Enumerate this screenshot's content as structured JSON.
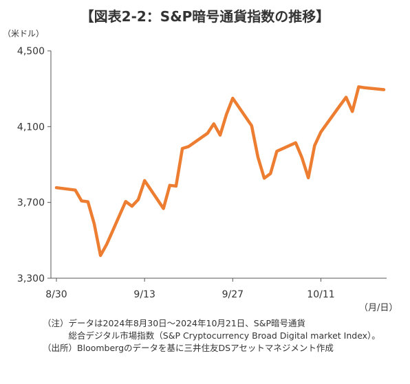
{
  "chart_data": {
    "type": "line",
    "title": "【図表2-2：S&P暗号通貨指数の推移】",
    "ylabel": "（米ドル）",
    "xlabel": "（月/日）",
    "ylim": [
      3300,
      4500
    ],
    "yticks": [
      "4,500",
      "4,100",
      "3,700",
      "3,300"
    ],
    "ytick_values": [
      4500,
      4100,
      3700,
      3300
    ],
    "xticks": [
      "8/30",
      "9/13",
      "9/27",
      "10/11"
    ],
    "xtick_dates": [
      "2024-08-30",
      "2024-09-13",
      "2024-09-27",
      "2024-10-11"
    ],
    "grid": false,
    "line_color": "#ED7D31",
    "series": [
      {
        "x": [
          "2024-08-30",
          "2024-09-02",
          "2024-09-03",
          "2024-09-04",
          "2024-09-05",
          "2024-09-06",
          "2024-09-07",
          "2024-09-08",
          "2024-09-09",
          "2024-09-10",
          "2024-09-11",
          "2024-09-12",
          "2024-09-13",
          "2024-09-16",
          "2024-09-17",
          "2024-09-18",
          "2024-09-19",
          "2024-09-20",
          "2024-09-23",
          "2024-09-24",
          "2024-09-25",
          "2024-09-26",
          "2024-09-27",
          "2024-09-30",
          "2024-10-01",
          "2024-10-02",
          "2024-10-03",
          "2024-10-04",
          "2024-10-07",
          "2024-10-08",
          "2024-10-09",
          "2024-10-10",
          "2024-10-11",
          "2024-10-14",
          "2024-10-15",
          "2024-10-16",
          "2024-10-17",
          "2024-10-18",
          "2024-10-21"
        ],
        "values": [
          3778,
          3765,
          3708,
          3704,
          3588,
          3420,
          3480,
          3555,
          3630,
          3705,
          3680,
          3715,
          3815,
          3668,
          3790,
          3786,
          3985,
          3995,
          4065,
          4115,
          4055,
          4165,
          4250,
          4105,
          3940,
          3828,
          3852,
          3970,
          4015,
          3935,
          3830,
          4000,
          4072,
          4210,
          4255,
          4180,
          4310,
          4305,
          4295
        ]
      }
    ]
  },
  "notes": {
    "note_label": "（注）",
    "note_text_1": "データは2024年8月30日～2024年10月21日、S&P暗号通貨",
    "note_text_2": "総合デジタル市場指数（S&P Cryptocurrency Broad Digital market Index）。",
    "source_label": "（出所）",
    "source_text": "Bloombergのデータを基に三井住友DSアセットマネジメント作成"
  }
}
